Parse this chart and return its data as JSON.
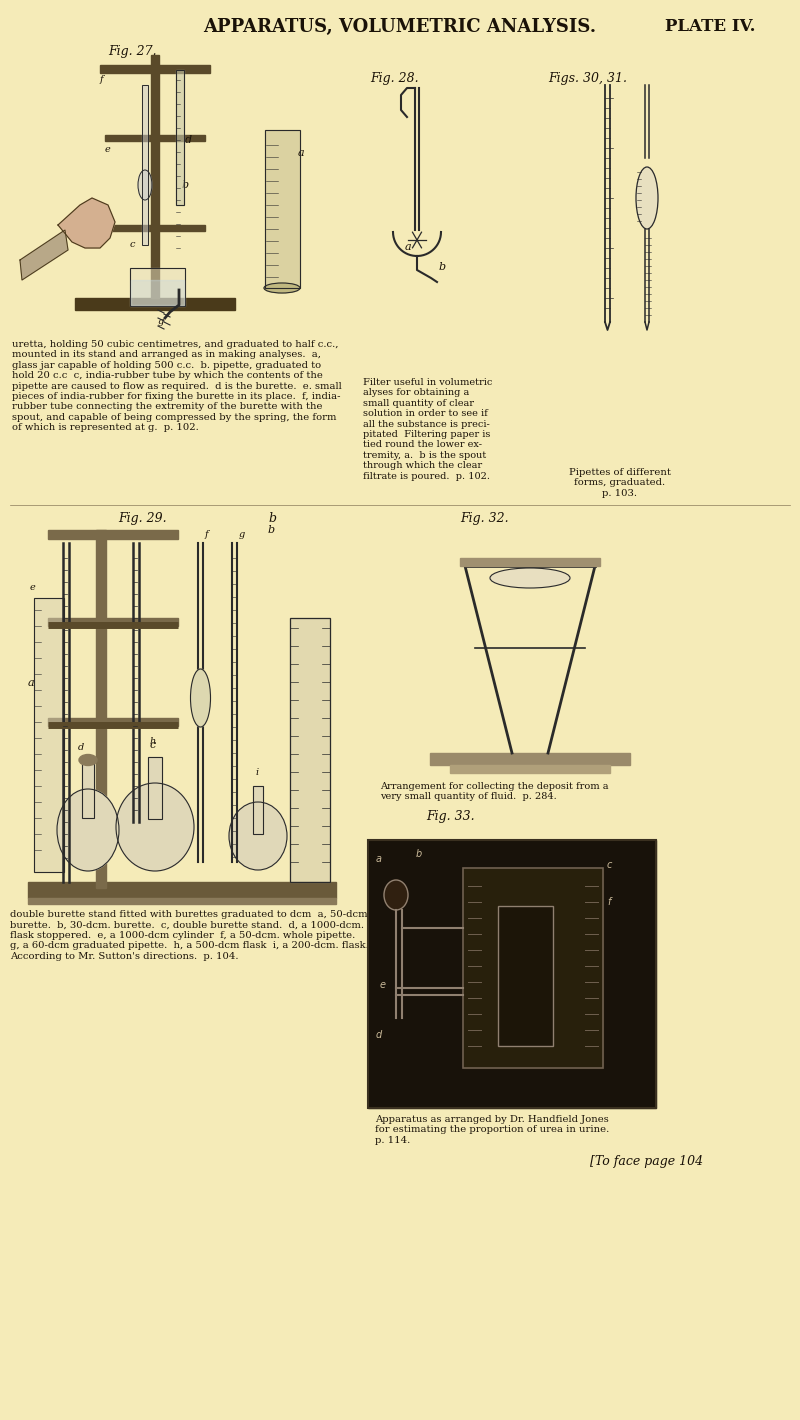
{
  "bg_color": "#f5ebb8",
  "title_text": "APPARATUS, VOLUMETRIC ANALYSIS.",
  "plate_text": "PLATE IV.",
  "title_fontsize": 13,
  "plate_fontsize": 12,
  "fig_label_fontsize": 9,
  "caption_fontsize": 7.2,
  "text_color": "#1a1208",
  "fig27_label": "Fig. 27.",
  "fig28_label": "Fig. 28.",
  "figs3031_label": "Figs. 30, 31.",
  "fig29_label": "Fig. 29.",
  "fig32_label": "Fig. 32.",
  "fig33_label": "Fig. 33.",
  "caption_top_left": "uretta, holding 50 cubic centimetres, and graduated to half c.c.,\nmounted in its stand and arranged as in making analyses.  a,\nglass jar capable of holding 500 c.c.  b. pipette, graduated to\nhold 20 c.c  c, india-rubber tube by which the contents of the\npipette are caused to flow as required.  d is the burette.  e. small\npieces of india-rubber for fixing the burette in its place.  f, india-\nrubber tube connecting the extremity of the burette with the\nspout, and capable of being compressed by the spring, the form\nof which is represented at g.  p. 102.",
  "caption_top_right": "Filter useful in volumetric\nalyses for obtaining a\nsmall quantity of clear\nsolution in order to see if\nall the substance is preci-\npitated  Filtering paper is\ntied round the lower ex-\ntremity, a.  b is the spout\nthrough which the clear\nfiltrate is poured.  p. 102.",
  "caption_pipettes": "Pipettes of different\nforms, graduated.\np. 103.",
  "caption_bottom_left": "double burette stand fitted with burettes graduated to dcm  a, 50-dcm.\nburette.  b, 30-dcm. burette.  c, double burette stand.  d, a 1000-dcm.\nflask stoppered.  e, a 1000-dcm cylinder  f, a 50-dcm. whole pipette.\ng, a 60-dcm graduated pipette.  h, a 500-dcm flask  i, a 200-dcm. flask.\nAccording to Mr. Sutton's directions.  p. 104.",
  "caption_bottom_right": "Apparatus as arranged by Dr. Handfield Jones\nfor estimating the proportion of urea in urine.\np. 114.",
  "caption_fig32": "Arrangement for collecting the deposit from a\nvery small quantity of fluid.  p. 284.",
  "footer_text": "[To face page 104"
}
